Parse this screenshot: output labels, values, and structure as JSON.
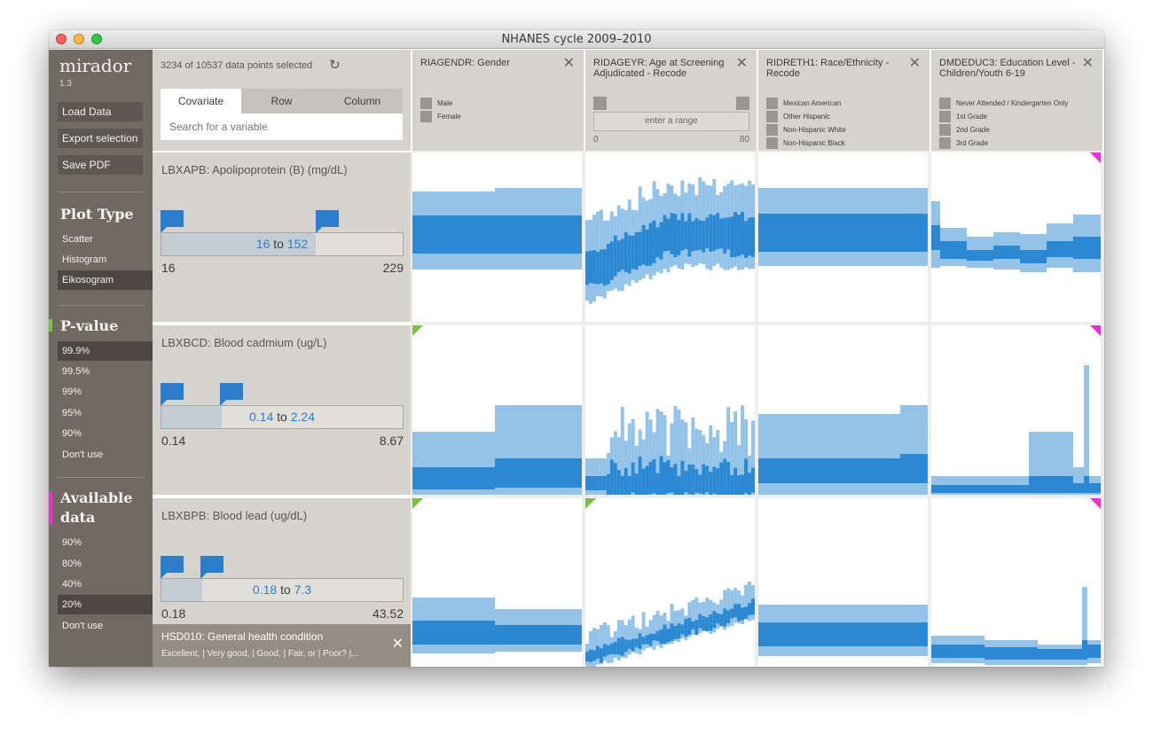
{
  "window": {
    "title": "NHANES cycle 2009–2010"
  },
  "sidebar": {
    "app_name": "mirador",
    "version": "1.3",
    "buttons": [
      "Load Data",
      "Export selection",
      "Save PDF"
    ],
    "plot_type": {
      "heading": "Plot Type",
      "items": [
        "Scatter",
        "Histogram",
        "Eikosogram"
      ],
      "selected": "Eikosogram"
    },
    "pvalue": {
      "heading": "P-value",
      "items": [
        "99.9%",
        "99.5%",
        "99%",
        "95%",
        "90%",
        "Don't use"
      ],
      "selected": "99.9%",
      "accent": "#7bc043"
    },
    "available": {
      "heading_line1": "Available",
      "heading_line2": "data",
      "items": [
        "90%",
        "80%",
        "40%",
        "20%",
        "Don't use"
      ],
      "selected": "20%",
      "accent": "#e630d9"
    }
  },
  "controls": {
    "selection_info": "3234 of 10537 data points selected",
    "tabs": [
      "Covariate",
      "Row",
      "Column"
    ],
    "active_tab": "Covariate",
    "search_placeholder": "Search for a variable"
  },
  "columns": [
    {
      "title": "RIAGENDR: Gender",
      "categories": [
        "Male",
        "Female"
      ]
    },
    {
      "title": "RIDAGEYR: Age at Screening Adjudicated - Recode",
      "range_placeholder": "enter a range",
      "min": "0",
      "max": "80"
    },
    {
      "title": "RIDRETH1: Race/Ethnicity - Recode",
      "categories": [
        "Mexican American",
        "Other Hispanic",
        "Non-Hispanic White",
        "Non-Hispanic Black"
      ]
    },
    {
      "title": "DMDEDUC3: Education Level - Children/Youth 6-19",
      "categories": [
        "Never Attended / Kindergarten Only",
        "1st Grade",
        "2nd Grade",
        "3rd Grade"
      ]
    }
  ],
  "rows": [
    {
      "title": "LBXAPB: Apolipoprotein (B) (mg/dL)",
      "sel_from": "16",
      "sel_to": "152",
      "to_word": "to",
      "min": "16",
      "max": "229",
      "sel_fraction": [
        0,
        0.64
      ]
    },
    {
      "title": "LBXBCD: Blood cadmium (ug/L)",
      "sel_from": "0.14",
      "sel_to": "2.24",
      "to_word": "to",
      "min": "0.14",
      "max": "8.67",
      "sel_fraction": [
        0,
        0.25
      ]
    },
    {
      "title": "LBXBPB: Blood lead (ug/dL)",
      "sel_from": "0.18",
      "sel_to": "7.3",
      "to_word": "to",
      "min": "0.18",
      "max": "43.52",
      "sel_fraction": [
        0,
        0.17
      ]
    }
  ],
  "covariate": {
    "title": "HSD010: General health condition",
    "desc": "Excellent, | Very good, | Good, | Fair, or | Poor? |..."
  },
  "colors": {
    "light_blue": "#93c3e8",
    "dark_blue": "#2b88d2",
    "pvalue_marker": "#7bc043",
    "missing_marker": "#e630d9"
  },
  "cell_markers": [
    [
      {
        "pvalue": false,
        "missing": false
      },
      {
        "pvalue": false,
        "missing": false
      },
      {
        "pvalue": false,
        "missing": false
      },
      {
        "pvalue": false,
        "missing": true
      }
    ],
    [
      {
        "pvalue": true,
        "missing": false
      },
      {
        "pvalue": false,
        "missing": false
      },
      {
        "pvalue": false,
        "missing": false
      },
      {
        "pvalue": false,
        "missing": true
      }
    ],
    [
      {
        "pvalue": true,
        "missing": false
      },
      {
        "pvalue": true,
        "missing": false
      },
      {
        "pvalue": false,
        "missing": false
      },
      {
        "pvalue": false,
        "missing": true
      }
    ]
  ]
}
